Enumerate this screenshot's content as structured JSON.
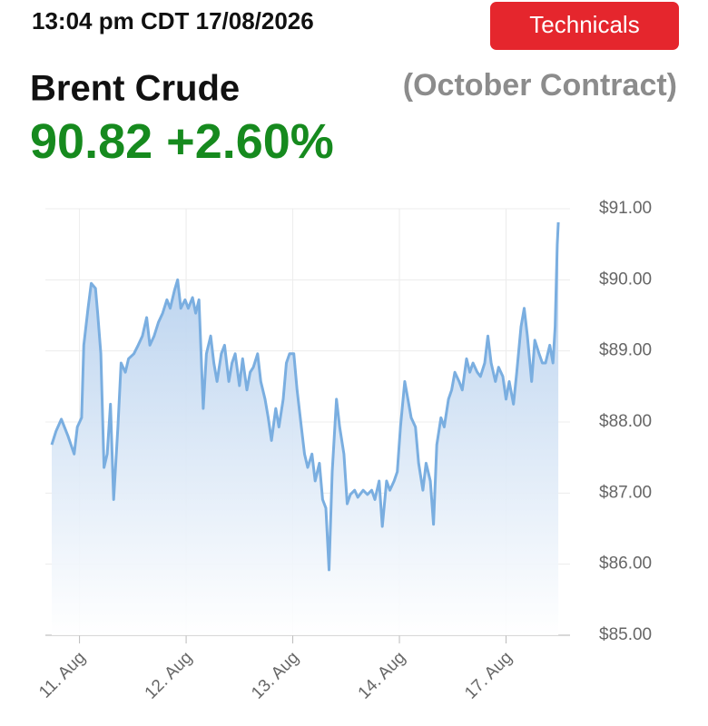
{
  "header": {
    "timestamp": "13:04 pm CDT 17/08/2026",
    "button": "Technicals",
    "title": "Brent Crude",
    "contract": "(October Contract)",
    "price": "90.82",
    "change": "+2.60%"
  },
  "chart_data": {
    "type": "area",
    "color": "#7aaee0",
    "grid": true,
    "x": [
      -0.26,
      -0.22,
      -0.17,
      -0.11,
      -0.05,
      -0.02,
      0.02,
      0.04,
      0.08,
      0.11,
      0.15,
      0.17,
      0.2,
      0.23,
      0.26,
      0.29,
      0.32,
      0.36,
      0.39,
      0.43,
      0.46,
      0.51,
      0.55,
      0.59,
      0.63,
      0.66,
      0.7,
      0.74,
      0.78,
      0.82,
      0.85,
      0.89,
      0.92,
      0.95,
      0.99,
      1.02,
      1.06,
      1.09,
      1.12,
      1.16,
      1.19,
      1.23,
      1.26,
      1.29,
      1.33,
      1.36,
      1.4,
      1.43,
      1.46,
      1.5,
      1.53,
      1.57,
      1.6,
      1.63,
      1.67,
      1.7,
      1.74,
      1.77,
      1.8,
      1.84,
      1.87,
      1.91,
      1.94,
      1.97,
      2.01,
      2.04,
      2.08,
      2.11,
      2.14,
      2.18,
      2.21,
      2.25,
      2.28,
      2.31,
      2.34,
      2.37,
      2.41,
      2.44,
      2.48,
      2.51,
      2.54,
      2.58,
      2.61,
      2.66,
      2.7,
      2.74,
      2.77,
      2.81,
      2.84,
      2.88,
      2.91,
      2.95,
      2.98,
      3.01,
      3.05,
      3.08,
      3.11,
      3.15,
      3.18,
      3.22,
      3.25,
      3.29,
      3.32,
      3.35,
      3.39,
      3.42,
      3.46,
      3.49,
      3.52,
      3.56,
      3.59,
      3.63,
      3.66,
      3.69,
      3.73,
      3.76,
      3.8,
      3.83,
      3.86,
      3.9,
      3.93,
      3.97,
      4,
      4.03,
      4.07,
      4.1,
      4.14,
      4.17,
      4.2,
      4.24,
      4.27,
      4.31,
      4.34,
      4.37,
      4.41,
      4.44,
      4.46,
      4.48,
      4.49
    ],
    "values": [
      87.68,
      87.87,
      88.04,
      87.81,
      87.55,
      87.93,
      88.06,
      89.08,
      89.6,
      89.95,
      89.88,
      89.53,
      88.96,
      87.36,
      87.55,
      88.25,
      86.91,
      87.93,
      88.83,
      88.7,
      88.89,
      88.96,
      89.08,
      89.21,
      89.47,
      89.08,
      89.21,
      89.4,
      89.53,
      89.72,
      89.6,
      89.85,
      90.0,
      89.6,
      89.72,
      89.6,
      89.75,
      89.53,
      89.72,
      88.19,
      88.96,
      89.21,
      88.83,
      88.57,
      88.96,
      89.08,
      88.57,
      88.83,
      88.96,
      88.51,
      88.89,
      88.45,
      88.7,
      88.77,
      88.96,
      88.57,
      88.32,
      88.06,
      87.74,
      88.19,
      87.93,
      88.32,
      88.83,
      88.96,
      88.96,
      88.45,
      87.93,
      87.55,
      87.36,
      87.55,
      87.17,
      87.42,
      86.91,
      86.79,
      85.92,
      87.3,
      88.32,
      87.93,
      87.55,
      86.85,
      86.98,
      87.04,
      86.94,
      87.04,
      86.98,
      87.04,
      86.91,
      87.17,
      86.53,
      87.17,
      87.04,
      87.17,
      87.3,
      87.93,
      88.57,
      88.32,
      88.06,
      87.93,
      87.42,
      87.04,
      87.42,
      87.17,
      86.56,
      87.68,
      88.06,
      87.93,
      88.32,
      88.45,
      88.7,
      88.57,
      88.45,
      88.89,
      88.7,
      88.83,
      88.7,
      88.64,
      88.83,
      89.21,
      88.83,
      88.57,
      88.77,
      88.64,
      88.32,
      88.57,
      88.25,
      88.7,
      89.34,
      89.6,
      89.21,
      88.57,
      89.15,
      88.96,
      88.83,
      88.83,
      89.08,
      88.83,
      89.34,
      90.49,
      90.81
    ],
    "xlim": [
      -0.32,
      4.6
    ],
    "xticks": [
      {
        "value": 0,
        "label": "11. Aug"
      },
      {
        "value": 1,
        "label": "12. Aug"
      },
      {
        "value": 2,
        "label": "13. Aug"
      },
      {
        "value": 3,
        "label": "14. Aug"
      },
      {
        "value": 4,
        "label": "17. Aug"
      }
    ],
    "ylim": [
      85,
      91
    ],
    "yticks": [
      {
        "value": 85,
        "label": "$85.00"
      },
      {
        "value": 86,
        "label": "$86.00"
      },
      {
        "value": 87,
        "label": "$87.00"
      },
      {
        "value": 88,
        "label": "$88.00"
      },
      {
        "value": 89,
        "label": "$89.00"
      },
      {
        "value": 90,
        "label": "$90.00"
      },
      {
        "value": 91,
        "label": "$91.00"
      }
    ]
  }
}
